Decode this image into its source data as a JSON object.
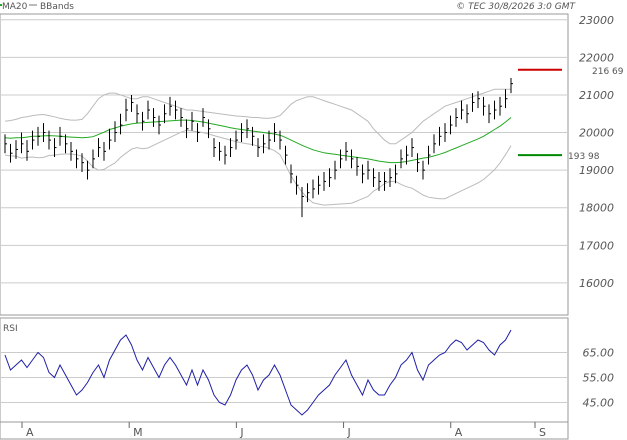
{
  "header": {
    "legend_ma": "MA20",
    "legend_bb": "BBands",
    "copyright": "© TEC 30/8/2026 3:0 GMT"
  },
  "colors": {
    "ma": "#22aa22",
    "bbands": "#bbbbbb",
    "price": "#000000",
    "resistance": "#cc0000",
    "support": "#008800",
    "rsi": "#1f1fa8",
    "grid": "#cccccc"
  },
  "levels": {
    "resistance": 21669,
    "resistance_label": "216 69",
    "support": 19398,
    "support_label": "193 98"
  },
  "rsi_panel": {
    "label": "RSI",
    "range": [
      38,
      78
    ]
  },
  "chart_data": [
    {
      "type": "line",
      "y_ticks": [
        "23000",
        "22000",
        "21000",
        "20000",
        "19000",
        "18000",
        "17000",
        "16000"
      ],
      "y_tick_values": [
        23000,
        22000,
        21000,
        20000,
        19000,
        18000,
        17000,
        16000
      ],
      "ylim": [
        15200,
        23100
      ],
      "x_ticks": [
        "A",
        "M",
        "J",
        "J",
        "A",
        "S"
      ],
      "x_tick_index": [
        0,
        19,
        38,
        57,
        76,
        95
      ],
      "n_bars": 93,
      "series": [
        {
          "name": "MA20",
          "values": [
            19860,
            19850,
            19860,
            19860,
            19880,
            19900,
            19900,
            19910,
            19920,
            19910,
            19900,
            19890,
            19880,
            19870,
            19860,
            19870,
            19890,
            19950,
            20010,
            20080,
            20120,
            20170,
            20200,
            20230,
            20250,
            20260,
            20270,
            20280,
            20290,
            20300,
            20310,
            20320,
            20330,
            20330,
            20320,
            20300,
            20280,
            20250,
            20220,
            20190,
            20160,
            20130,
            20100,
            20080,
            20060,
            20040,
            20020,
            20000,
            19980,
            19960,
            19930,
            19870,
            19800,
            19730,
            19660,
            19600,
            19540,
            19500,
            19460,
            19440,
            19420,
            19400,
            19380,
            19360,
            19340,
            19320,
            19300,
            19270,
            19240,
            19220,
            19200,
            19200,
            19210,
            19230,
            19260,
            19290,
            19320,
            19340,
            19380,
            19420,
            19470,
            19530,
            19590,
            19650,
            19710,
            19770,
            19830,
            19900,
            19990,
            20080,
            20170,
            20280,
            20400
          ]
        },
        {
          "name": "BBands",
          "values": [
            20300,
            20320,
            20350,
            20400,
            20420,
            20450,
            20470,
            20480,
            20450,
            20420,
            20380,
            20350,
            20330,
            20330,
            20350,
            20500,
            20700,
            20900,
            21000,
            21050,
            21050,
            21000,
            20950,
            20900,
            20900,
            20950,
            20950,
            20900,
            20850,
            20800,
            20750,
            20700,
            20650,
            20600,
            20600,
            20580,
            20560,
            20540,
            20520,
            20500,
            20480,
            20460,
            20440,
            20430,
            20420,
            20400,
            20400,
            20380,
            20380,
            20400,
            20450,
            20600,
            20750,
            20850,
            20900,
            20950,
            20950,
            20900,
            20850,
            20800,
            20750,
            20700,
            20650,
            20600,
            20500,
            20400,
            20300,
            20100,
            19950,
            19800,
            19700,
            19700,
            19800,
            19900,
            20000,
            20150,
            20300,
            20400,
            20500,
            20600,
            20700,
            20750,
            20800,
            20850,
            20900,
            20950,
            21000,
            21050,
            21100,
            21150,
            21150,
            21150,
            21150
          ]
        },
        {
          "name": "",
          "values": [
            19400,
            19380,
            19370,
            19320,
            19340,
            19350,
            19330,
            19340,
            19390,
            19400,
            19420,
            19430,
            19430,
            19410,
            19370,
            19240,
            19080,
            19000,
            19020,
            19110,
            19190,
            19340,
            19450,
            19560,
            19600,
            19570,
            19590,
            19660,
            19730,
            19800,
            19870,
            19940,
            20010,
            20060,
            20040,
            20020,
            20000,
            19960,
            19920,
            19880,
            19840,
            19800,
            19760,
            19730,
            19700,
            19680,
            19640,
            19620,
            19580,
            19520,
            19410,
            19140,
            18850,
            18610,
            18420,
            18250,
            18130,
            18100,
            18070,
            18080,
            18090,
            18100,
            18110,
            18120,
            18180,
            18240,
            18300,
            18440,
            18530,
            18640,
            18700,
            18700,
            18620,
            18560,
            18520,
            18430,
            18340,
            18280,
            18260,
            18240,
            18240,
            18310,
            18380,
            18450,
            18520,
            18590,
            18660,
            18750,
            18880,
            19010,
            19190,
            19410,
            19650
          ]
        }
      ]
    },
    {
      "type": "bar",
      "name": "price",
      "close": [
        19700,
        19450,
        19550,
        19700,
        19500,
        19800,
        19900,
        20000,
        19800,
        19600,
        19900,
        19700,
        19500,
        19300,
        19200,
        19000,
        19300,
        19600,
        19500,
        19800,
        20000,
        20200,
        20600,
        20800,
        20500,
        20300,
        20600,
        20400,
        20200,
        20500,
        20700,
        20600,
        20400,
        20100,
        20300,
        20000,
        20400,
        20100,
        19600,
        19500,
        19400,
        19600,
        19800,
        20000,
        20100,
        19900,
        19600,
        19700,
        19800,
        20000,
        19800,
        19400,
        18900,
        18600,
        18300,
        18400,
        18500,
        18600,
        18700,
        18800,
        19000,
        19300,
        19500,
        19300,
        19100,
        18900,
        19000,
        18800,
        18700,
        18700,
        18800,
        18900,
        19300,
        19400,
        19600,
        19200,
        19000,
        19400,
        19700,
        19900,
        20000,
        20200,
        20400,
        20600,
        20500,
        20800,
        20900,
        20700,
        20500,
        20600,
        20700,
        20900,
        21300
      ],
      "high": [
        19950,
        19700,
        19800,
        20000,
        19800,
        20050,
        20150,
        20250,
        20050,
        19850,
        20150,
        19950,
        19750,
        19550,
        19450,
        19250,
        19550,
        19850,
        19750,
        20100,
        20300,
        20500,
        20900,
        21000,
        20750,
        20550,
        20850,
        20650,
        20450,
        20750,
        20950,
        20850,
        20650,
        20350,
        20550,
        20250,
        20650,
        20350,
        19850,
        19750,
        19650,
        19850,
        20050,
        20250,
        20350,
        20150,
        19850,
        19950,
        20050,
        20250,
        20050,
        19650,
        19150,
        18850,
        18550,
        18650,
        18750,
        18850,
        18950,
        19050,
        19250,
        19550,
        19750,
        19550,
        19350,
        19150,
        19250,
        19050,
        18950,
        18950,
        19050,
        19150,
        19550,
        19650,
        19850,
        19450,
        19250,
        19650,
        19950,
        20150,
        20250,
        20450,
        20650,
        20850,
        20750,
        21050,
        21100,
        20950,
        20750,
        20850,
        20950,
        21150,
        21450
      ],
      "low": [
        19450,
        19200,
        19300,
        19450,
        19250,
        19550,
        19650,
        19750,
        19550,
        19350,
        19650,
        19450,
        19250,
        19050,
        18950,
        18750,
        19050,
        19350,
        19250,
        19550,
        19750,
        19950,
        20300,
        20550,
        20250,
        20050,
        20350,
        20150,
        19950,
        20250,
        20450,
        20350,
        20150,
        19850,
        20050,
        19750,
        20150,
        19850,
        19350,
        19250,
        19150,
        19350,
        19550,
        19750,
        19850,
        19650,
        19350,
        19450,
        19550,
        19750,
        19550,
        19150,
        18650,
        18350,
        17750,
        18150,
        18250,
        18350,
        18450,
        18550,
        18750,
        19050,
        19250,
        19050,
        18850,
        18650,
        18750,
        18550,
        18450,
        18450,
        18550,
        18650,
        19050,
        19150,
        19350,
        18950,
        18750,
        19150,
        19450,
        19650,
        19750,
        19950,
        20150,
        20350,
        20250,
        20550,
        20650,
        20450,
        20250,
        20350,
        20450,
        20650,
        21050
      ]
    },
    {
      "type": "line",
      "name": "RSI",
      "y_ticks": [
        "65.00",
        "55.00",
        "45.00"
      ],
      "y_tick_values": [
        65,
        55,
        45
      ],
      "ylim": [
        38,
        78
      ],
      "values": [
        64,
        58,
        60,
        62,
        59,
        62,
        65,
        63,
        57,
        55,
        60,
        56,
        52,
        48,
        50,
        53,
        57,
        60,
        55,
        62,
        66,
        70,
        72,
        68,
        62,
        58,
        63,
        59,
        55,
        60,
        63,
        60,
        56,
        52,
        58,
        52,
        58,
        54,
        48,
        45,
        44,
        48,
        54,
        58,
        60,
        56,
        50,
        54,
        56,
        60,
        56,
        50,
        44,
        42,
        40,
        42,
        45,
        48,
        50,
        52,
        56,
        59,
        62,
        56,
        52,
        48,
        54,
        50,
        48,
        48,
        52,
        55,
        60,
        62,
        65,
        58,
        54,
        60,
        62,
        64,
        65,
        68,
        70,
        69,
        66,
        68,
        70,
        69,
        66,
        64,
        68,
        70,
        74
      ]
    }
  ]
}
